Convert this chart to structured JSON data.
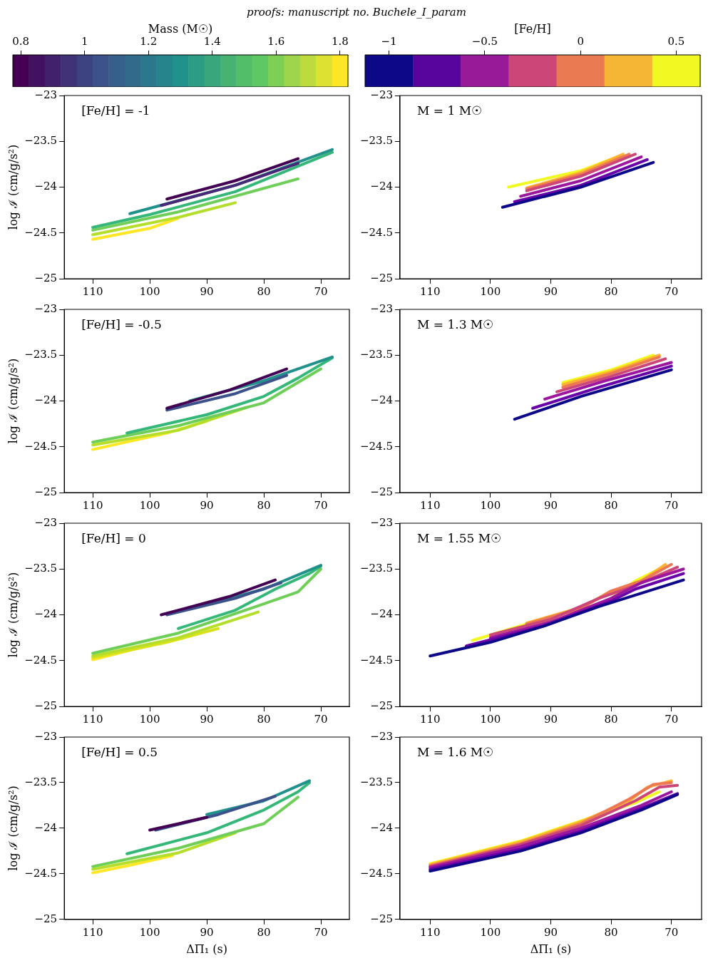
{
  "chart_data": [
    {
      "type": "line",
      "title": "proofs: manuscript no. Buchele_I_param",
      "ylabel": "log ℐ (cm/g/s²)",
      "clabel": "Mass (M☉)",
      "clim": [
        0.775,
        1.825
      ],
      "cticks": [
        0.8,
        1.0,
        1.2,
        1.4,
        1.6,
        1.8
      ],
      "annotations": [
        "[Fe/H] = -1"
      ],
      "xlim": [
        115,
        65
      ],
      "xticks": [
        110,
        100,
        90,
        80,
        70
      ],
      "ylim": [
        -25,
        -23
      ],
      "yticks": [
        -25.0,
        -24.5,
        -24.0,
        -23.5,
        -23.0
      ],
      "grid": false,
      "series": [
        {
          "color": "#440154",
          "x": [
            97,
            85,
            74
          ],
          "values": [
            -24.13,
            -23.93,
            -23.69
          ]
        },
        {
          "color": "#482878",
          "x": [
            98,
            85,
            74
          ],
          "values": [
            -24.2,
            -23.98,
            -23.74
          ]
        },
        {
          "color": "#21918c",
          "x": [
            103.5,
            85,
            68
          ],
          "values": [
            -24.29,
            -23.98,
            -23.59
          ]
        },
        {
          "color": "#35b779",
          "x": [
            110,
            100,
            85,
            68
          ],
          "values": [
            -24.44,
            -24.3,
            -24.05,
            -23.62
          ]
        },
        {
          "color": "#6ece58",
          "x": [
            110,
            95,
            74
          ],
          "values": [
            -24.47,
            -24.27,
            -23.91
          ]
        },
        {
          "color": "#b5de2b",
          "x": [
            110,
            95,
            85
          ],
          "values": [
            -24.52,
            -24.33,
            -24.17
          ]
        },
        {
          "color": "#fde725",
          "x": [
            110,
            100,
            95
          ],
          "values": [
            -24.57,
            -24.45,
            -24.34
          ]
        }
      ]
    },
    {
      "type": "line",
      "clabel": "[Fe/H]",
      "clim": [
        -1.125,
        0.625
      ],
      "cticks": [
        -1.0,
        -0.5,
        0.0,
        0.5
      ],
      "annotations": [
        "M = 1 M☉"
      ],
      "xlim": [
        115,
        65
      ],
      "xticks": [
        110,
        100,
        90,
        80,
        70
      ],
      "ylim": [
        -25,
        -23
      ],
      "yticks": [
        -25.0,
        -24.5,
        -24.0,
        -23.5,
        -23.0
      ],
      "grid": false,
      "series": [
        {
          "color": "#0d0887",
          "x": [
            98,
            85,
            73
          ],
          "values": [
            -24.22,
            -24.0,
            -23.73
          ]
        },
        {
          "color": "#6a00a8",
          "x": [
            96,
            85,
            74
          ],
          "values": [
            -24.16,
            -23.98,
            -23.7
          ]
        },
        {
          "color": "#9c179e",
          "x": [
            95,
            85,
            75
          ],
          "values": [
            -24.1,
            -23.93,
            -23.67
          ]
        },
        {
          "color": "#cc4778",
          "x": [
            94,
            85,
            76
          ],
          "values": [
            -24.04,
            -23.88,
            -23.64
          ]
        },
        {
          "color": "#ed7953",
          "x": [
            94,
            85,
            77
          ],
          "values": [
            -24.02,
            -23.86,
            -23.64
          ]
        },
        {
          "color": "#fdb42f",
          "x": [
            94,
            85,
            78
          ],
          "values": [
            -24.01,
            -23.84,
            -23.64
          ]
        },
        {
          "color": "#f0f921",
          "x": [
            97,
            85,
            79
          ],
          "values": [
            -24.0,
            -23.82,
            -23.67
          ]
        }
      ]
    },
    {
      "type": "line",
      "ylabel": "log ℐ (cm/g/s²)",
      "annotations": [
        "[Fe/H] = -0.5"
      ],
      "xlim": [
        115,
        65
      ],
      "xticks": [
        110,
        100,
        90,
        80,
        70
      ],
      "ylim": [
        -25,
        -23
      ],
      "yticks": [
        -25.0,
        -24.5,
        -24.0,
        -23.5,
        -23.0
      ],
      "grid": false,
      "series": [
        {
          "color": "#440154",
          "x": [
            97,
            86,
            76
          ],
          "values": [
            -24.08,
            -23.88,
            -23.65
          ]
        },
        {
          "color": "#3b528b",
          "x": [
            97,
            85,
            76
          ],
          "values": [
            -24.1,
            -23.92,
            -23.72
          ]
        },
        {
          "color": "#21918c",
          "x": [
            93,
            80,
            68
          ],
          "values": [
            -24.0,
            -23.78,
            -23.52
          ]
        },
        {
          "color": "#35b779",
          "x": [
            104,
            90,
            80,
            74,
            68
          ],
          "values": [
            -24.35,
            -24.15,
            -23.95,
            -23.75,
            -23.53
          ]
        },
        {
          "color": "#6ece58",
          "x": [
            110,
            95,
            80,
            70
          ],
          "values": [
            -24.45,
            -24.27,
            -24.02,
            -23.65
          ]
        },
        {
          "color": "#b5de2b",
          "x": [
            110,
            95,
            83
          ],
          "values": [
            -24.48,
            -24.32,
            -24.07
          ]
        },
        {
          "color": "#fde725",
          "x": [
            110,
            97,
            90
          ],
          "values": [
            -24.53,
            -24.35,
            -24.22
          ]
        }
      ]
    },
    {
      "type": "line",
      "annotations": [
        "M = 1.3 M☉"
      ],
      "xlim": [
        115,
        65
      ],
      "xticks": [
        110,
        100,
        90,
        80,
        70
      ],
      "ylim": [
        -25,
        -23
      ],
      "yticks": [
        -25.0,
        -24.5,
        -24.0,
        -23.5,
        -23.0
      ],
      "grid": false,
      "series": [
        {
          "color": "#0d0887",
          "x": [
            96,
            85,
            70
          ],
          "values": [
            -24.2,
            -23.95,
            -23.66
          ]
        },
        {
          "color": "#6a00a8",
          "x": [
            93,
            82,
            70
          ],
          "values": [
            -24.08,
            -23.85,
            -23.62
          ]
        },
        {
          "color": "#9c179e",
          "x": [
            91,
            81,
            70
          ],
          "values": [
            -23.98,
            -23.78,
            -23.58
          ]
        },
        {
          "color": "#cc4778",
          "x": [
            89,
            80,
            71
          ],
          "values": [
            -23.9,
            -23.73,
            -23.54
          ]
        },
        {
          "color": "#ed7953",
          "x": [
            88,
            80,
            72
          ],
          "values": [
            -23.85,
            -23.7,
            -23.52
          ]
        },
        {
          "color": "#fdb42f",
          "x": [
            88,
            80,
            72
          ],
          "values": [
            -23.82,
            -23.68,
            -23.5
          ]
        },
        {
          "color": "#f0f921",
          "x": [
            88,
            80,
            73
          ],
          "values": [
            -23.8,
            -23.66,
            -23.5
          ]
        }
      ]
    },
    {
      "type": "line",
      "ylabel": "log ℐ (cm/g/s²)",
      "annotations": [
        "[Fe/H] = 0"
      ],
      "xlim": [
        115,
        65
      ],
      "xticks": [
        110,
        100,
        90,
        80,
        70
      ],
      "ylim": [
        -25,
        -23
      ],
      "yticks": [
        -25.0,
        -24.5,
        -24.0,
        -23.5,
        -23.0
      ],
      "grid": false,
      "series": [
        {
          "color": "#440154",
          "x": [
            98,
            86,
            78
          ],
          "values": [
            -24.0,
            -23.8,
            -23.62
          ]
        },
        {
          "color": "#3b528b",
          "x": [
            97,
            85,
            77
          ],
          "values": [
            -24.0,
            -23.82,
            -23.65
          ]
        },
        {
          "color": "#21918c",
          "x": [
            92,
            80,
            70
          ],
          "values": [
            -23.92,
            -23.72,
            -23.46
          ]
        },
        {
          "color": "#35b779",
          "x": [
            95,
            85,
            78,
            72,
            70
          ],
          "values": [
            -24.15,
            -23.95,
            -23.72,
            -23.55,
            -23.47
          ]
        },
        {
          "color": "#6ece58",
          "x": [
            110,
            95,
            80,
            74,
            70
          ],
          "values": [
            -24.42,
            -24.2,
            -23.88,
            -23.75,
            -23.5
          ]
        },
        {
          "color": "#b5de2b",
          "x": [
            110,
            95,
            81
          ],
          "values": [
            -24.45,
            -24.25,
            -23.97
          ]
        },
        {
          "color": "#d8e219",
          "x": [
            110,
            97,
            88
          ],
          "values": [
            -24.47,
            -24.3,
            -24.15
          ]
        },
        {
          "color": "#fde725",
          "x": [
            110,
            103,
            94
          ],
          "values": [
            -24.49,
            -24.38,
            -24.25
          ]
        }
      ]
    },
    {
      "type": "line",
      "annotations": [
        "M = 1.55 M☉"
      ],
      "xlim": [
        115,
        65
      ],
      "xticks": [
        110,
        100,
        90,
        80,
        70
      ],
      "ylim": [
        -25,
        -23
      ],
      "yticks": [
        -25.0,
        -24.5,
        -24.0,
        -23.5,
        -23.0
      ],
      "grid": false,
      "series": [
        {
          "color": "#0d0887",
          "x": [
            110,
            100,
            91,
            82,
            68
          ],
          "values": [
            -24.45,
            -24.3,
            -24.12,
            -23.91,
            -23.62
          ]
        },
        {
          "color": "#6a00a8",
          "x": [
            104,
            91,
            80,
            76,
            68
          ],
          "values": [
            -24.34,
            -24.12,
            -23.85,
            -23.72,
            -23.55
          ]
        },
        {
          "color": "#9c179e",
          "x": [
            100,
            90,
            80,
            75,
            68
          ],
          "values": [
            -24.25,
            -24.08,
            -23.82,
            -23.65,
            -23.5
          ]
        },
        {
          "color": "#cc4778",
          "x": [
            100,
            90,
            82,
            76,
            69
          ],
          "values": [
            -24.22,
            -24.05,
            -23.82,
            -23.68,
            -23.48
          ]
        },
        {
          "color": "#ed7953",
          "x": [
            94,
            85,
            80,
            75,
            70
          ],
          "values": [
            -24.1,
            -23.93,
            -23.74,
            -23.63,
            -23.45
          ]
        },
        {
          "color": "#fdb42f",
          "x": [
            94,
            85,
            80,
            75,
            71
          ],
          "values": [
            -24.09,
            -23.92,
            -23.75,
            -23.63,
            -23.45
          ]
        },
        {
          "color": "#f0f921",
          "x": [
            103,
            90,
            81,
            76,
            72
          ],
          "values": [
            -24.28,
            -24.02,
            -23.87,
            -23.63,
            -23.5
          ]
        }
      ]
    },
    {
      "type": "line",
      "xlabel": "ΔΠ₁ (s)",
      "ylabel": "log ℐ (cm/g/s²)",
      "annotations": [
        "[Fe/H] = 0.5"
      ],
      "xlim": [
        115,
        65
      ],
      "xticks": [
        110,
        100,
        90,
        80,
        70
      ],
      "ylim": [
        -25,
        -23
      ],
      "yticks": [
        -25.0,
        -24.5,
        -24.0,
        -23.5,
        -23.0
      ],
      "grid": false,
      "series": [
        {
          "color": "#440154",
          "x": [
            100,
            90
          ],
          "values": [
            -24.02,
            -23.88
          ]
        },
        {
          "color": "#3b528b",
          "x": [
            99,
            88,
            78
          ],
          "values": [
            -24.02,
            -23.85,
            -23.65
          ]
        },
        {
          "color": "#21918c",
          "x": [
            90,
            80,
            72
          ],
          "values": [
            -23.85,
            -23.7,
            -23.48
          ]
        },
        {
          "color": "#35b779",
          "x": [
            104,
            90,
            80,
            74,
            72
          ],
          "values": [
            -24.28,
            -24.05,
            -23.8,
            -23.6,
            -23.5
          ]
        },
        {
          "color": "#6ece58",
          "x": [
            110,
            95,
            80,
            74
          ],
          "values": [
            -24.42,
            -24.22,
            -23.95,
            -23.66
          ]
        },
        {
          "color": "#b5de2b",
          "x": [
            110,
            95,
            85
          ],
          "values": [
            -24.45,
            -24.27,
            -24.05
          ]
        },
        {
          "color": "#fde725",
          "x": [
            110,
            103,
            96
          ],
          "values": [
            -24.49,
            -24.4,
            -24.3
          ]
        }
      ]
    },
    {
      "type": "line",
      "xlabel": "ΔΠ₁ (s)",
      "annotations": [
        "M = 1.6 M☉"
      ],
      "xlim": [
        115,
        65
      ],
      "xticks": [
        110,
        100,
        90,
        80,
        70
      ],
      "ylim": [
        -25,
        -23
      ],
      "yticks": [
        -25.0,
        -24.5,
        -24.0,
        -23.5,
        -23.0
      ],
      "grid": false,
      "series": [
        {
          "color": "#0d0887",
          "x": [
            110,
            95,
            85,
            75,
            69
          ],
          "values": [
            -24.47,
            -24.25,
            -24.05,
            -23.8,
            -23.63
          ]
        },
        {
          "color": "#6a00a8",
          "x": [
            110,
            95,
            85,
            75,
            69
          ],
          "values": [
            -24.45,
            -24.23,
            -24.03,
            -23.78,
            -23.62
          ]
        },
        {
          "color": "#9c179e",
          "x": [
            110,
            95,
            85,
            75,
            70
          ],
          "values": [
            -24.43,
            -24.2,
            -24.0,
            -23.75,
            -23.6
          ]
        },
        {
          "color": "#cc4778",
          "x": [
            110,
            95,
            85,
            76,
            72,
            69
          ],
          "values": [
            -24.42,
            -24.18,
            -23.97,
            -23.7,
            -23.55,
            -23.53
          ]
        },
        {
          "color": "#ed7953",
          "x": [
            110,
            95,
            85,
            77,
            73,
            70
          ],
          "values": [
            -24.41,
            -24.17,
            -23.95,
            -23.68,
            -23.52,
            -23.5
          ]
        },
        {
          "color": "#fdb42f",
          "x": [
            110,
            95,
            85,
            77,
            74,
            70
          ],
          "values": [
            -24.4,
            -24.15,
            -23.93,
            -23.7,
            -23.55,
            -23.48
          ]
        },
        {
          "color": "#f0f921",
          "x": [
            110,
            95,
            85,
            76,
            72
          ],
          "values": [
            -24.39,
            -24.14,
            -23.92,
            -23.72,
            -23.6
          ]
        }
      ]
    }
  ]
}
